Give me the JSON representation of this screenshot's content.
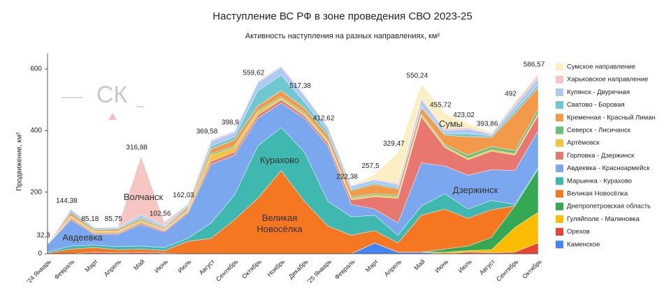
{
  "chart_data": {
    "type": "stacked_area",
    "title": "Наступление ВС РФ в зоне проведения СВО 2023-25",
    "subtitle": "Активность наступления на разных направлениях, км²",
    "y_label": "Продвижение, км²",
    "watermark": "СК",
    "categories": [
      "'24 Январь",
      "Февраль",
      "Март",
      "Апрель",
      "Май",
      "Июнь",
      "Июль",
      "Август",
      "Сентябрь",
      "Октябрь",
      "Ноябрь",
      "Декабрь",
      "'25 Январь",
      "Февраль",
      "Март",
      "Апрель",
      "Май",
      "Июнь",
      "Июль",
      "Август",
      "Сентябрь",
      "Октябрь"
    ],
    "ylim": [
      0,
      650
    ],
    "yticks": [
      0,
      200,
      400,
      600
    ],
    "grid": false,
    "series": [
      {
        "name": "Каменское",
        "color": "#4285f4",
        "values": [
          0,
          0,
          0,
          0,
          0,
          0,
          0,
          0,
          0,
          0,
          0,
          0,
          0,
          0,
          35,
          5,
          5,
          0,
          0,
          0,
          0,
          0
        ]
      },
      {
        "name": "Орехов",
        "color": "#ea4335",
        "values": [
          0,
          0,
          5,
          3,
          5,
          2,
          0,
          0,
          0,
          0,
          0,
          0,
          0,
          0,
          0,
          0,
          0,
          0,
          5,
          3,
          5,
          35
        ]
      },
      {
        "name": "Гуляйполе - Малиновка",
        "color": "#fbbc04",
        "values": [
          0,
          0,
          0,
          0,
          0,
          0,
          0,
          0,
          0,
          0,
          0,
          0,
          0,
          0,
          0,
          0,
          0,
          5,
          5,
          10,
          80,
          100
        ]
      },
      {
        "name": "Днепропетровская область",
        "color": "#34a853",
        "values": [
          0,
          0,
          0,
          0,
          0,
          0,
          0,
          0,
          0,
          0,
          0,
          0,
          0,
          0,
          0,
          0,
          0,
          10,
          15,
          40,
          70,
          140
        ]
      },
      {
        "name": "Великая Новосёлка",
        "color": "#f57722",
        "values": [
          2,
          15,
          15,
          10,
          10,
          8,
          40,
          50,
          110,
          180,
          270,
          170,
          90,
          60,
          40,
          30,
          120,
          130,
          90,
          90,
          0,
          0
        ]
      },
      {
        "name": "Марьинка - Курахово",
        "color": "#3fb8b0",
        "values": [
          3,
          10,
          8,
          10,
          10,
          10,
          10,
          50,
          80,
          170,
          140,
          160,
          80,
          60,
          50,
          25,
          30,
          50,
          30,
          30,
          5,
          5
        ]
      },
      {
        "name": "Авдеевка - Красноармейск",
        "color": "#7ba7ee",
        "values": [
          25,
          85,
          35,
          40,
          70,
          50,
          80,
          190,
          130,
          90,
          80,
          110,
          180,
          40,
          20,
          40,
          140,
          90,
          110,
          100,
          110,
          120
        ]
      },
      {
        "name": "Горловка - Дзержинск",
        "color": "#e8776f",
        "values": [
          1,
          5,
          3,
          4,
          5,
          4,
          5,
          10,
          10,
          10,
          10,
          8,
          10,
          15,
          40,
          80,
          150,
          60,
          50,
          60,
          50,
          50
        ]
      },
      {
        "name": "Артёмовск",
        "color": "#f5c242",
        "values": [
          0,
          5,
          5,
          4,
          5,
          3,
          5,
          20,
          15,
          10,
          5,
          5,
          5,
          5,
          5,
          5,
          5,
          5,
          5,
          5,
          5,
          5
        ]
      },
      {
        "name": "Северск - Лисичанск",
        "color": "#6bbf7b",
        "values": [
          0,
          3,
          2,
          2,
          3,
          2,
          3,
          5,
          5,
          5,
          5,
          5,
          5,
          5,
          5,
          5,
          5,
          5,
          10,
          10,
          10,
          15
        ]
      },
      {
        "name": "Кременная - Красный Лиман",
        "color": "#f2994a",
        "values": [
          1.3,
          10,
          5,
          6,
          5,
          5,
          8,
          15,
          20,
          15,
          20,
          15,
          15,
          20,
          30,
          20,
          20,
          30,
          60,
          30,
          120,
          70
        ]
      },
      {
        "name": "Сватово - Боровая",
        "color": "#6fc8cf",
        "values": [
          0,
          5,
          4,
          3,
          5,
          3,
          4,
          10,
          10,
          50,
          50,
          20,
          10,
          5,
          5,
          5,
          5,
          5,
          10,
          5,
          10,
          10
        ]
      },
      {
        "name": "Купянск - Двуречная",
        "color": "#aec9f5",
        "values": [
          0,
          6.38,
          3.18,
          3.75,
          8,
          5,
          5,
          15,
          15,
          25,
          25,
          20,
          15,
          10,
          10,
          10,
          20,
          10,
          15,
          5,
          15,
          20
        ]
      },
      {
        "name": "Харьковское направление",
        "color": "#f5c6c2",
        "values": [
          0,
          0,
          0,
          0,
          190.88,
          10.56,
          2.03,
          4.58,
          3.9,
          4.62,
          5,
          4.38,
          2.62,
          2.38,
          2.5,
          4.47,
          5.24,
          5.72,
          5.02,
          2.86,
          10,
          10
        ]
      },
      {
        "name": "Сумское направление",
        "color": "#fcefc4",
        "values": [
          0,
          0,
          0,
          0,
          0,
          0,
          0,
          0,
          0,
          0,
          0,
          0,
          0,
          0,
          15,
          100,
          45,
          50,
          13,
          3,
          2,
          6.57
        ]
      }
    ],
    "totals": {
      "values": [
        32.3,
        144.38,
        85.18,
        85.75,
        316.88,
        102.56,
        162.03,
        369.58,
        398.9,
        559.62,
        null,
        517.38,
        412.62,
        222.38,
        257.5,
        329.47,
        550.24,
        455.72,
        423.02,
        393.86,
        492,
        586.57
      ],
      "value_labels": [
        "32,3",
        "144,38",
        "85,18",
        "85,75",
        "316,88",
        "102,56",
        "162,03",
        "369,58",
        "398,9",
        "559,62",
        null,
        "517,38",
        "412,62",
        "222,38",
        "257,5",
        "329,47",
        "550,24",
        "455,72",
        "423,02",
        "393,86",
        "492",
        "586,57"
      ]
    },
    "annotations": [
      "Авдеевка",
      "Волчанск",
      "Курахово",
      "Великая Новосёлка",
      "Сумы",
      "Дзержинск"
    ]
  }
}
